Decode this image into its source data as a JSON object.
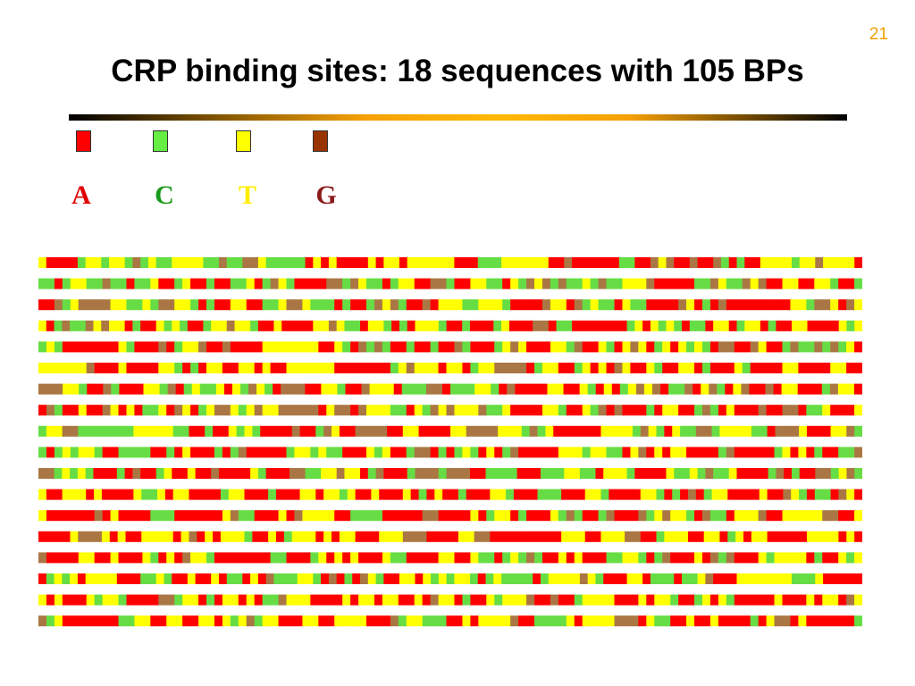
{
  "slide": {
    "number": "21",
    "title": "CRP binding sites: 18 sequences with 105 BPs"
  },
  "legend": [
    {
      "letter": "A",
      "swatch_color": "#ff0000",
      "text_color": "#e00000"
    },
    {
      "letter": "C",
      "swatch_color": "#66ee44",
      "text_color": "#1a9a1a"
    },
    {
      "letter": "T",
      "swatch_color": "#ffff00",
      "text_color": "#ffee00"
    },
    {
      "letter": "G",
      "swatch_color": "#993300",
      "text_color": "#8b1a1a"
    }
  ],
  "grid_colors": {
    "A": "#ff0000",
    "C": "#66dd44",
    "T": "#ffff00",
    "G": "#aa7744",
    "gap": "#ffffff"
  },
  "sequences": [
    "TAAAACTTCTTCGCTCCTTTTCCGCCGGTCCCCCATATAAAATATTATTTTTTAAACCCTTTTTTAAGAAAAAACCAAGTGAAGAAGCACAATTTTCTTGTTTTA",
    "CCACTTCCGCCACCTAACTAACAACCTACGTCAAAAGGCGTCCACTTAAGGCAATTCCATCGTGCGCCTCGCCTTTGAAAAACCGTCCGTGAATTAATTCAAC",
    "AAGCTGGGGTTCCTCGGTTCACAATTAACCTGGTCCCACAACGTGCAAGATTTCCTTTCAAAAGTTAGCTCCATCCAAAAGTACAGAAAAAAAATTCGGTAGT",
    "TACGCCGTGTTACAATCTCAACTTGTTCAATAAAATTGTCCATTCACATTTCAACAAACTAAAGGACCAAAAAAACTATCTCACCATTACTTACAATTAAAATCT",
    "CTCAAAAAAATCAAAGACTTGAAGAAAATTTTTTTAATCAGCGCAACAACAAGCAAACTGTAAATTCGAATCATGTACTATCTCAGGAAGTAACGCCGCGCTA",
    "TTTTTTGAAATAAAATTCACATTAATTATAATTTTTTAAAAAAACTGTTTATTACTTGGGGACTTAACTATAGTAATCAATTACAAATCAAAATTAAAATTAA",
    "GGGTTCAAGCAAATTCGACTCCTATCGTCAGGGAATTCAAGTTTACCCGGACCCTTCAGAAAATTAATCATACTGTGACCGATGCATGAAGATTAAACGTTA",
    "AGCAATAAGTATACCTAGTACTGGTCTGTTGGGGGATGGAGTTTCCATCGTGTTTGCCTAAAATTCAATCGAGAAACATTAACGCATAAAGAAGGACCTAAAT",
    "CTTGGCCCCCCCTTTTTCCAACAATCTCAAAAGAACGTAAGGGGAATTAAAATTGGGGTTTCGCTAAAAAATTTTCGTCATCCGGCTTTTCCAGGGTAAATTGC",
    "CACTCTTCAACCCCAACATAAACACGAAAAACTTCTCCAAATCTAACGGACACTCATACGAAAAATTTCTTCCATGATATTAAAACGAAAAACTATACAACCG",
    "GGCTCTCAAACAGAACTAATAAGAAAATCAAAGGCCTTGTTACGAAACGGGCGGGAACCCCAAACCCTTCCATTTCAAAATCCTCGCCTAAAACGACAAGGCTGC",
    "TAATTTATAAAATCCTATTAAAACTTAAACAAATTATTCTAATAAATACATAACAAATTCAAACCCAAATTCAAAATTCACAGACTTAAAATAAGTCACCAGTA",
    "TAAAAAAGATAAAACCCAAAAAATGCCAAATAGTTTTAACCCCAAAAAGGAAAATACTTACAAATCGCAACGAAAGCTGTTCAGCCATTTGAATTTTTGGAAT",
    "AAAATGGGTATAATTTTATGATATTTCAATACTTTATATTAAATTTGGGAAAATTGGAAAAAAAAATTTAATTTGGAACTTTAATTACTATTAAAAATTTTATA",
    "GAAAATTAATAAATCATAGTTCAAAAAAACCAAACTATATAAATCCAAAATTAATCCACTCGCAATATAAACCTTCACGAAATAGCGAAATCTTTTACAATCT",
    "ACTCTATTTTAAACCTCAATAATACCATAGCCCTTCAGACAGTCAATTATCTCTTCACTCCCCACTTTTGTCAAATTACCCACCTGAAATTTTTTTCCCTAAAAA",
    "TATAAATCTTCAAAAGGCTTACATTATACCGTTTAAAATATTATTAATAGTTACAATCTTTGAAGAACTTTTAAATATTCAACTATCAAAAATAAATATTAGT",
    "GCTAAAAAAACCTTAATTAATTATCTGCTTAAATTAATTTTAAAGCTTCCCAATATTTTGAACCCCTATTTTGGGATCCAATAATAAAACATGGATAAAAAAC"
  ]
}
